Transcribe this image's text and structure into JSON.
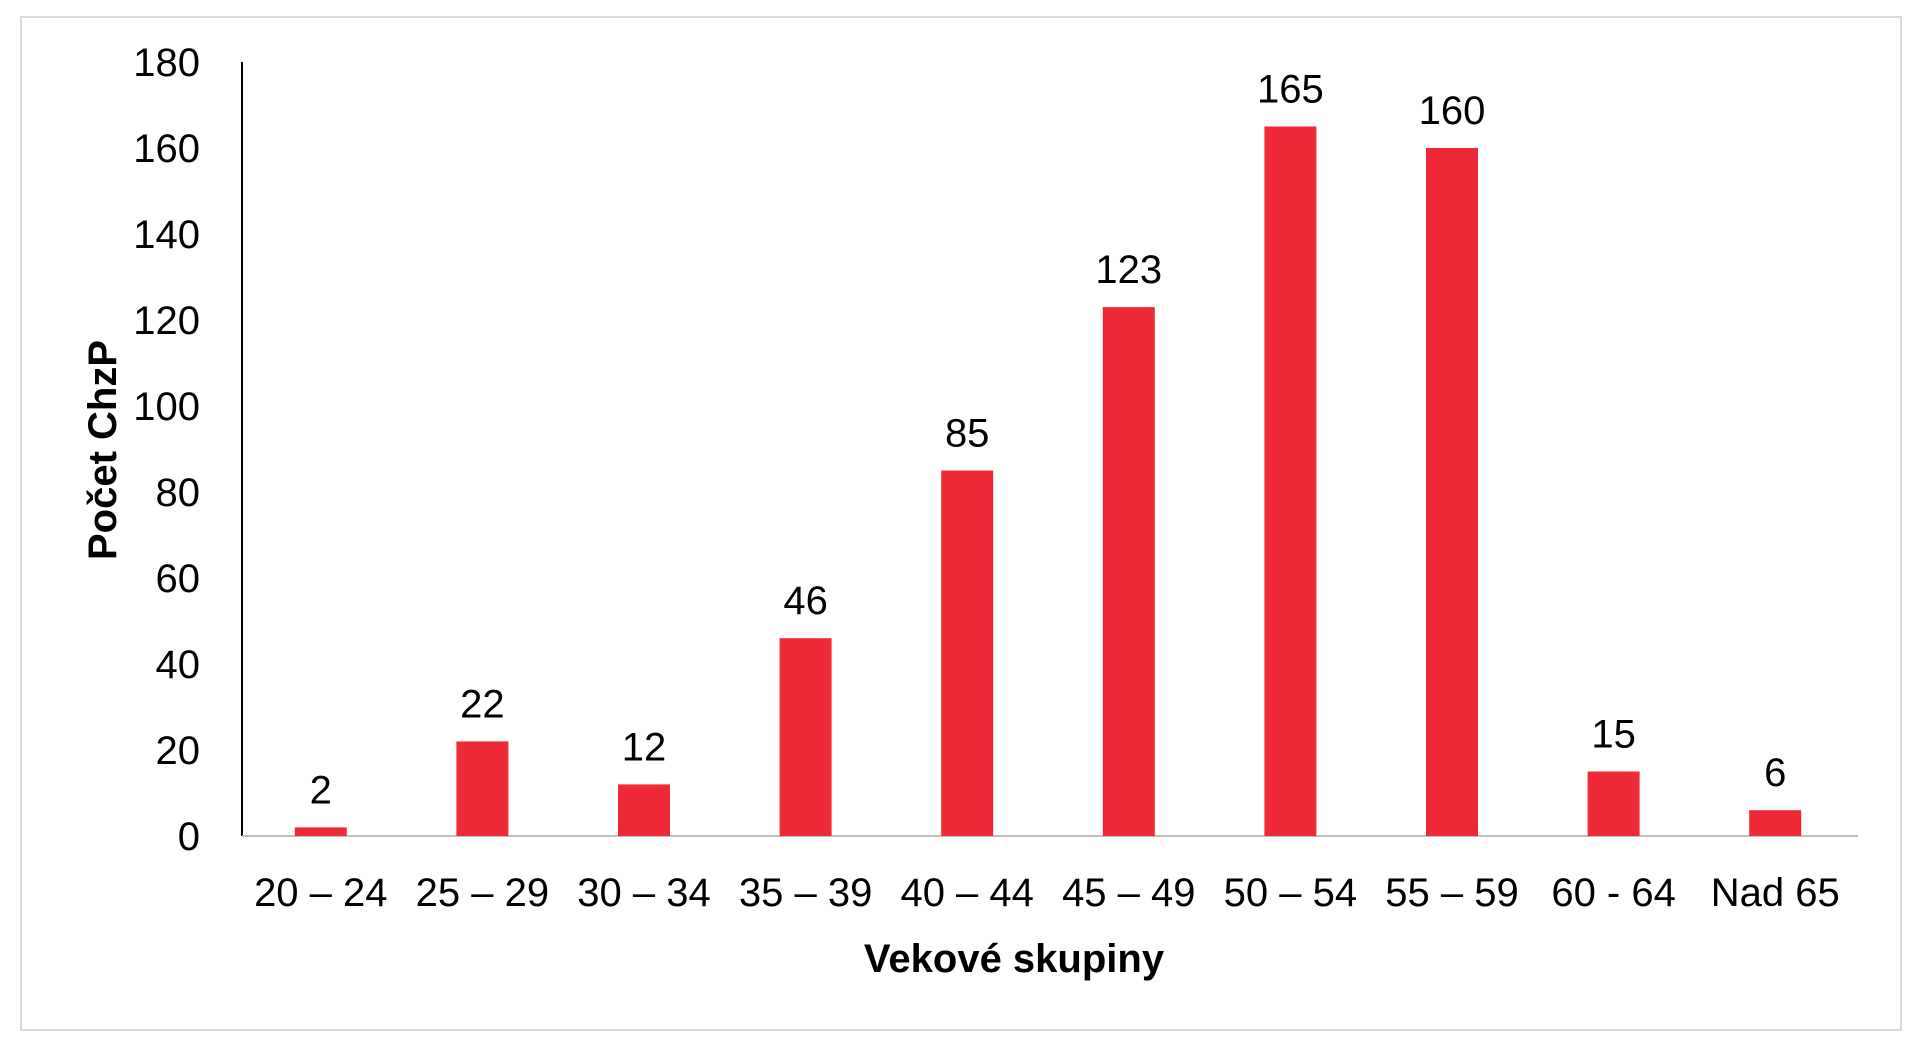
{
  "chart_data": {
    "type": "bar",
    "categories": [
      "20 – 24",
      "25 – 29",
      "30 – 34",
      "35 – 39",
      "40 – 44",
      "45 – 49",
      "50 – 54",
      "55 – 59",
      "60 - 64",
      "Nad 65"
    ],
    "values": [
      2,
      22,
      12,
      46,
      85,
      123,
      165,
      160,
      15,
      6
    ],
    "title": "",
    "xlabel": "Vekové skupiny",
    "ylabel": "Počet ChzP",
    "ylim": [
      0,
      180
    ],
    "yticks": [
      0,
      20,
      40,
      60,
      80,
      100,
      120,
      140,
      160,
      180
    ],
    "data_labels": true,
    "grid": false,
    "legend": "none",
    "bar_color": "#EE2A36"
  }
}
